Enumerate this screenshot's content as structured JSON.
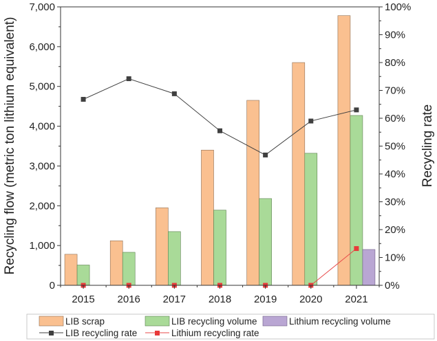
{
  "chart_data": {
    "type": "bar",
    "categories": [
      "2015",
      "2016",
      "2017",
      "2018",
      "2019",
      "2020",
      "2021"
    ],
    "series": [
      {
        "name": "LIB scrap",
        "kind": "bar",
        "axis": "left",
        "color": "#FAC090",
        "values": [
          780,
          1120,
          1950,
          3400,
          4650,
          5600,
          6780
        ]
      },
      {
        "name": "LIB recycling volume",
        "kind": "bar",
        "axis": "left",
        "color": "#A9DA98",
        "values": [
          510,
          830,
          1350,
          1890,
          2180,
          3320,
          4270
        ]
      },
      {
        "name": "Lithium recycling volume",
        "kind": "bar",
        "axis": "left",
        "color": "#B9A6D3",
        "values": [
          0,
          0,
          0,
          0,
          0,
          0,
          900
        ]
      },
      {
        "name": "LIB recycling rate",
        "kind": "line",
        "axis": "right",
        "color": "#404040",
        "marker_color": "#404040",
        "values": [
          66.8,
          74.2,
          68.8,
          55.5,
          46.8,
          59.0,
          63.0
        ]
      },
      {
        "name": "Lithium recycling rate",
        "kind": "line",
        "axis": "right",
        "color": "#E84A4A",
        "marker_color": "#E83A3A",
        "values": [
          0,
          0,
          0,
          0,
          0,
          0,
          13.2
        ]
      }
    ],
    "ylabel": "Recycling flow (metric ton lithium equivalent)",
    "y2label": "Recycling rate",
    "ylim": [
      0,
      7000
    ],
    "y2lim": [
      0,
      100
    ],
    "yticks": [
      0,
      1000,
      2000,
      3000,
      4000,
      5000,
      6000,
      7000
    ],
    "yticklabels": [
      "0",
      "1,000",
      "2,000",
      "3,000",
      "4,000",
      "5,000",
      "6,000",
      "7,000"
    ],
    "y2ticks": [
      0,
      10,
      20,
      30,
      40,
      50,
      60,
      70,
      80,
      90,
      100
    ],
    "y2ticklabels": [
      "0%",
      "10%",
      "20%",
      "30%",
      "40%",
      "50%",
      "60%",
      "70%",
      "80%",
      "90%",
      "100%"
    ],
    "legend": "bottom",
    "grid": false
  }
}
